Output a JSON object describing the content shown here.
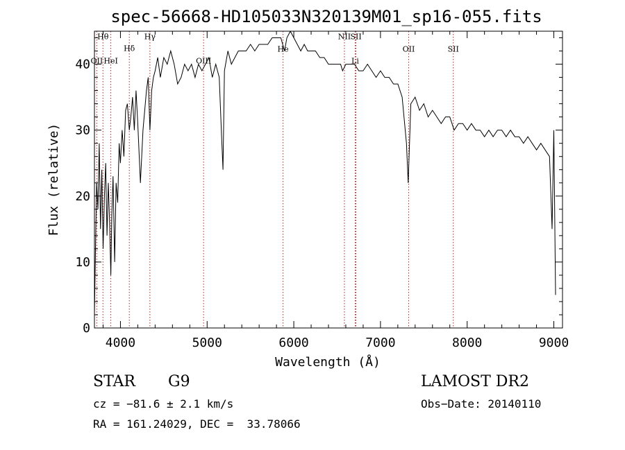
{
  "chart_data": {
    "type": "line",
    "title": "spec-56668-HD105033N320139M01_sp16-055.fits",
    "xlabel": "Wavelength (Å)",
    "ylabel": "Flux (relative)",
    "xlim": [
      3700,
      9100
    ],
    "ylim": [
      0,
      45
    ],
    "xticks": [
      4000,
      5000,
      6000,
      7000,
      8000,
      9000
    ],
    "yticks": [
      0,
      10,
      20,
      30,
      40
    ],
    "grid": false,
    "series_color": "#000000",
    "line_color": "#b22222",
    "spectrum": {
      "x": [
        3700,
        3710,
        3725,
        3740,
        3755,
        3770,
        3785,
        3800,
        3815,
        3830,
        3845,
        3860,
        3875,
        3889,
        3900,
        3915,
        3933,
        3950,
        3968,
        3985,
        4000,
        4020,
        4040,
        4060,
        4080,
        4102,
        4120,
        4140,
        4160,
        4180,
        4200,
        4230,
        4260,
        4300,
        4320,
        4340,
        4360,
        4380,
        4400,
        4430,
        4460,
        4500,
        4540,
        4580,
        4620,
        4660,
        4700,
        4740,
        4780,
        4820,
        4861,
        4900,
        4940,
        4980,
        5020,
        5060,
        5100,
        5140,
        5167,
        5183,
        5200,
        5240,
        5280,
        5320,
        5360,
        5400,
        5450,
        5500,
        5550,
        5600,
        5650,
        5700,
        5750,
        5800,
        5850,
        5893,
        5920,
        5960,
        6000,
        6040,
        6080,
        6120,
        6160,
        6200,
        6250,
        6300,
        6350,
        6400,
        6450,
        6500,
        6540,
        6563,
        6600,
        6650,
        6700,
        6750,
        6800,
        6850,
        6900,
        6950,
        7000,
        7050,
        7100,
        7150,
        7200,
        7250,
        7300,
        7320,
        7350,
        7400,
        7450,
        7500,
        7550,
        7600,
        7650,
        7700,
        7750,
        7800,
        7850,
        7900,
        7950,
        8000,
        8050,
        8100,
        8150,
        8200,
        8250,
        8300,
        8350,
        8400,
        8450,
        8500,
        8550,
        8600,
        8650,
        8700,
        8750,
        8800,
        8850,
        8900,
        8950,
        8980,
        9000,
        9020
      ],
      "y": [
        2,
        10,
        22,
        18,
        28,
        15,
        24,
        12,
        20,
        25,
        14,
        22,
        16,
        8,
        17,
        23,
        10,
        22,
        19,
        28,
        25,
        30,
        26,
        33,
        34,
        30,
        32,
        35,
        30,
        36,
        31,
        22,
        30,
        36,
        38,
        30,
        36,
        38,
        39,
        41,
        38,
        41,
        40,
        42,
        40,
        37,
        38,
        40,
        39,
        40,
        38,
        40,
        39,
        40,
        41,
        38,
        40,
        38,
        29,
        24,
        39,
        42,
        40,
        41,
        42,
        42,
        42,
        43,
        42,
        43,
        43,
        43,
        44,
        44,
        44,
        42,
        44,
        45,
        44,
        43,
        42,
        43,
        42,
        42,
        42,
        41,
        41,
        40,
        40,
        40,
        40,
        39,
        40,
        40,
        40,
        39,
        39,
        40,
        39,
        38,
        39,
        38,
        38,
        37,
        37,
        35,
        28,
        22,
        34,
        35,
        33,
        34,
        32,
        33,
        32,
        31,
        32,
        32,
        30,
        31,
        31,
        30,
        31,
        30,
        30,
        29,
        30,
        29,
        30,
        30,
        29,
        30,
        29,
        29,
        28,
        29,
        28,
        27,
        28,
        27,
        26,
        15,
        30,
        5
      ]
    },
    "lines": [
      {
        "label": "Hθ",
        "x": 3798,
        "label_y": 43.8
      },
      {
        "label": "OII",
        "x": 3727,
        "label_y": 40.1
      },
      {
        "label": "HeI",
        "x": 3889,
        "label_y": 40.1
      },
      {
        "label": "Hδ",
        "x": 4102,
        "label_y": 42.0
      },
      {
        "label": "Hγ",
        "x": 4340,
        "label_y": 43.8
      },
      {
        "label": "OIII",
        "x": 4959,
        "label_y": 40.1
      },
      {
        "label": "He",
        "x": 5876,
        "label_y": 41.9
      },
      {
        "label": "NII",
        "x": 6584,
        "label_y": 43.8
      },
      {
        "label": "SII",
        "x": 6717,
        "label_y": 43.8
      },
      {
        "label": "Li",
        "x": 6708,
        "label_y": 40.1
      },
      {
        "label": "OII",
        "x": 7325,
        "label_y": 41.9
      },
      {
        "label": "SII",
        "x": 7840,
        "label_y": 41.9
      }
    ]
  },
  "info": {
    "class_label": "STAR",
    "subclass": "G9",
    "survey": "LAMOST DR2",
    "cz": "cz = −81.6 ± 2.1 km/s",
    "obs_date": "Obs−Date: 20140110",
    "coords": "RA = 161.24029, DEC =  33.78066"
  }
}
